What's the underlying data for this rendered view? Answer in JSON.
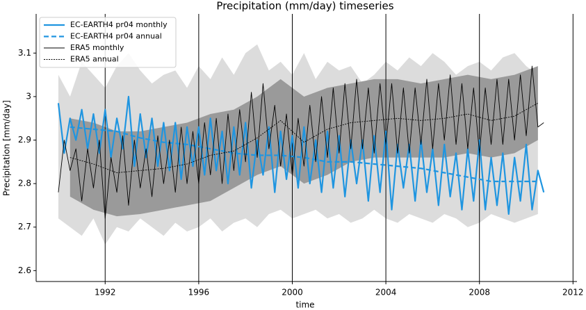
{
  "chart_data": {
    "type": "line",
    "title": "Precipitation (mm/day) timeseries",
    "xlabel": "time",
    "ylabel": "Precipitation [mm/day]",
    "xlim": [
      1989.05,
      2012.05
    ],
    "ylim": [
      2.575,
      3.19
    ],
    "xticks": [
      1992,
      1996,
      2000,
      2004,
      2008,
      2012
    ],
    "yticks": [
      2.6,
      2.7,
      2.8,
      2.9,
      3.0,
      3.1
    ],
    "grid_x": true,
    "legend": "upper left",
    "bands": [
      {
        "color": "#dcdcdc",
        "x": [
          1990,
          1990.5,
          1991,
          1991.5,
          1992,
          1992.5,
          1993,
          1993.5,
          1994,
          1994.5,
          1995,
          1995.5,
          1996,
          1996.5,
          1997,
          1997.5,
          1998,
          1998.5,
          1999,
          1999.5,
          2000,
          2000.5,
          2001,
          2001.5,
          2002,
          2002.5,
          2003,
          2003.5,
          2004,
          2004.5,
          2005,
          2005.5,
          2006,
          2006.5,
          2007,
          2007.5,
          2008,
          2008.5,
          2009,
          2009.5,
          2010,
          2010.5
        ],
        "upper": [
          3.05,
          3.0,
          3.08,
          3.05,
          3.02,
          3.07,
          3.1,
          3.06,
          3.03,
          3.05,
          3.06,
          3.02,
          3.07,
          3.04,
          3.09,
          3.05,
          3.1,
          3.12,
          3.06,
          3.08,
          3.05,
          3.1,
          3.04,
          3.08,
          3.06,
          3.07,
          3.03,
          3.05,
          3.08,
          3.06,
          3.09,
          3.07,
          3.1,
          3.08,
          3.05,
          3.07,
          3.08,
          3.06,
          3.09,
          3.1,
          3.07,
          3.05
        ],
        "lower": [
          2.72,
          2.7,
          2.68,
          2.72,
          2.66,
          2.7,
          2.69,
          2.72,
          2.7,
          2.68,
          2.71,
          2.69,
          2.7,
          2.72,
          2.69,
          2.71,
          2.72,
          2.7,
          2.73,
          2.74,
          2.72,
          2.73,
          2.74,
          2.72,
          2.73,
          2.71,
          2.72,
          2.74,
          2.72,
          2.71,
          2.73,
          2.72,
          2.71,
          2.73,
          2.72,
          2.7,
          2.71,
          2.73,
          2.72,
          2.71,
          2.72,
          2.73
        ]
      },
      {
        "color": "#9a9a9a",
        "x": [
          1990.5,
          1991.5,
          1992.5,
          1993.5,
          1994.5,
          1995.5,
          1996.5,
          1997.5,
          1998.5,
          1999.5,
          2000.5,
          2001.5,
          2002.5,
          2003.5,
          2004.5,
          2005.5,
          2006.5,
          2007.5,
          2008.5,
          2009.5,
          2010.5
        ],
        "upper": [
          2.95,
          2.94,
          2.92,
          2.92,
          2.93,
          2.94,
          2.96,
          2.97,
          3.0,
          3.04,
          3.0,
          3.02,
          3.03,
          3.04,
          3.04,
          3.03,
          3.04,
          3.05,
          3.04,
          3.05,
          3.07
        ],
        "lower": [
          2.77,
          2.74,
          2.725,
          2.73,
          2.74,
          2.75,
          2.76,
          2.79,
          2.82,
          2.84,
          2.8,
          2.82,
          2.85,
          2.86,
          2.86,
          2.86,
          2.86,
          2.87,
          2.86,
          2.87,
          2.9
        ]
      }
    ],
    "series": [
      {
        "name": "EC-EARTH4 pr04 monthly",
        "color": "#1f95e0",
        "linestyle": "solid",
        "linewidth": 2.2,
        "x": [
          1990,
          1990.25,
          1990.5,
          1990.75,
          1991,
          1991.25,
          1991.5,
          1991.75,
          1992,
          1992.25,
          1992.5,
          1992.75,
          1993,
          1993.25,
          1993.5,
          1993.75,
          1994,
          1994.25,
          1994.5,
          1994.75,
          1995,
          1995.25,
          1995.5,
          1995.75,
          1996,
          1996.25,
          1996.5,
          1996.75,
          1997,
          1997.25,
          1997.5,
          1997.75,
          1998,
          1998.25,
          1998.5,
          1998.75,
          1999,
          1999.25,
          1999.5,
          1999.75,
          2000,
          2000.25,
          2000.5,
          2000.75,
          2001,
          2001.25,
          2001.5,
          2001.75,
          2002,
          2002.25,
          2002.5,
          2002.75,
          2003,
          2003.25,
          2003.5,
          2003.75,
          2004,
          2004.25,
          2004.5,
          2004.75,
          2005,
          2005.25,
          2005.5,
          2005.75,
          2006,
          2006.25,
          2006.5,
          2006.75,
          2007,
          2007.25,
          2007.5,
          2007.75,
          2008,
          2008.25,
          2008.5,
          2008.75,
          2009,
          2009.25,
          2009.5,
          2009.75,
          2010,
          2010.25,
          2010.5,
          2010.75
        ],
        "values": [
          2.985,
          2.87,
          2.95,
          2.9,
          2.97,
          2.88,
          2.96,
          2.87,
          2.97,
          2.86,
          2.95,
          2.88,
          3.0,
          2.84,
          2.96,
          2.86,
          2.95,
          2.84,
          2.94,
          2.83,
          2.94,
          2.81,
          2.93,
          2.84,
          2.93,
          2.82,
          2.95,
          2.83,
          2.92,
          2.8,
          2.93,
          2.82,
          2.94,
          2.79,
          2.9,
          2.82,
          2.93,
          2.78,
          2.92,
          2.81,
          2.91,
          2.79,
          2.93,
          2.8,
          2.9,
          2.78,
          2.92,
          2.79,
          2.91,
          2.77,
          2.9,
          2.8,
          2.9,
          2.76,
          2.91,
          2.78,
          2.92,
          2.74,
          2.89,
          2.79,
          2.89,
          2.76,
          2.9,
          2.78,
          2.88,
          2.75,
          2.89,
          2.77,
          2.87,
          2.74,
          2.88,
          2.76,
          2.9,
          2.74,
          2.86,
          2.75,
          2.87,
          2.73,
          2.86,
          2.76,
          2.89,
          2.74,
          2.83,
          2.78
        ]
      },
      {
        "name": "EC-EARTH4 pr04 annual",
        "color": "#1f95e0",
        "linestyle": "dashed",
        "linewidth": 2.2,
        "x": [
          1990.5,
          1991.5,
          1992.5,
          1993.5,
          1994.5,
          1995.5,
          1996.5,
          1997.5,
          1998.5,
          1999.5,
          2000.5,
          2001.5,
          2002.5,
          2003.5,
          2004.5,
          2005.5,
          2006.5,
          2007.5,
          2008.5,
          2009.5,
          2010.5
        ],
        "values": [
          2.93,
          2.925,
          2.92,
          2.905,
          2.895,
          2.89,
          2.88,
          2.87,
          2.865,
          2.865,
          2.86,
          2.85,
          2.85,
          2.845,
          2.84,
          2.835,
          2.825,
          2.815,
          2.805,
          2.805,
          2.805
        ]
      },
      {
        "name": "ERA5 monthly",
        "color": "#000000",
        "linestyle": "solid",
        "linewidth": 0.9,
        "x": [
          1990,
          1990.25,
          1990.5,
          1990.75,
          1991,
          1991.25,
          1991.5,
          1991.75,
          1992,
          1992.25,
          1992.5,
          1992.75,
          1993,
          1993.25,
          1993.5,
          1993.75,
          1994,
          1994.25,
          1994.5,
          1994.75,
          1995,
          1995.25,
          1995.5,
          1995.75,
          1996,
          1996.25,
          1996.5,
          1996.75,
          1997,
          1997.25,
          1997.5,
          1997.75,
          1998,
          1998.25,
          1998.5,
          1998.75,
          1999,
          1999.25,
          1999.5,
          1999.75,
          2000,
          2000.25,
          2000.5,
          2000.75,
          2001,
          2001.25,
          2001.5,
          2001.75,
          2002,
          2002.25,
          2002.5,
          2002.75,
          2003,
          2003.25,
          2003.5,
          2003.75,
          2004,
          2004.25,
          2004.5,
          2004.75,
          2005,
          2005.25,
          2005.5,
          2005.75,
          2006,
          2006.25,
          2006.5,
          2006.75,
          2007,
          2007.25,
          2007.5,
          2007.75,
          2008,
          2008.25,
          2008.5,
          2008.75,
          2009,
          2009.25,
          2009.5,
          2009.75,
          2010,
          2010.25,
          2010.5,
          2010.75
        ],
        "values": [
          2.78,
          2.9,
          2.83,
          2.88,
          2.76,
          2.88,
          2.79,
          2.9,
          2.72,
          2.86,
          2.78,
          2.91,
          2.75,
          2.9,
          2.79,
          2.88,
          2.77,
          2.91,
          2.8,
          2.9,
          2.78,
          2.93,
          2.8,
          2.92,
          2.8,
          2.94,
          2.82,
          2.95,
          2.8,
          2.96,
          2.83,
          2.97,
          2.85,
          3.01,
          2.86,
          3.03,
          2.88,
          2.98,
          2.84,
          2.96,
          2.82,
          2.95,
          2.84,
          2.98,
          2.85,
          3.0,
          2.86,
          3.02,
          2.87,
          3.03,
          2.88,
          3.04,
          2.88,
          3.02,
          2.87,
          3.03,
          2.89,
          3.03,
          2.87,
          3.02,
          2.87,
          3.02,
          2.89,
          3.04,
          2.88,
          3.03,
          2.9,
          3.05,
          2.89,
          3.03,
          2.88,
          3.02,
          2.87,
          3.02,
          2.89,
          3.04,
          2.89,
          3.04,
          2.9,
          3.05,
          2.91,
          3.07,
          2.93,
          2.94
        ]
      },
      {
        "name": "ERA5 annual",
        "color": "#000000",
        "linestyle": "dotted",
        "linewidth": 0.9,
        "x": [
          1990.5,
          1991.5,
          1992.5,
          1993.5,
          1994.5,
          1995.5,
          1996.5,
          1997.5,
          1998.5,
          1999.5,
          2000.5,
          2001.5,
          2002.5,
          2003.5,
          2004.5,
          2005.5,
          2006.5,
          2007.5,
          2008.5,
          2009.5,
          2010.5
        ],
        "values": [
          2.86,
          2.845,
          2.825,
          2.83,
          2.835,
          2.845,
          2.865,
          2.875,
          2.905,
          2.945,
          2.895,
          2.925,
          2.94,
          2.945,
          2.95,
          2.945,
          2.95,
          2.96,
          2.945,
          2.955,
          2.985
        ]
      }
    ]
  }
}
